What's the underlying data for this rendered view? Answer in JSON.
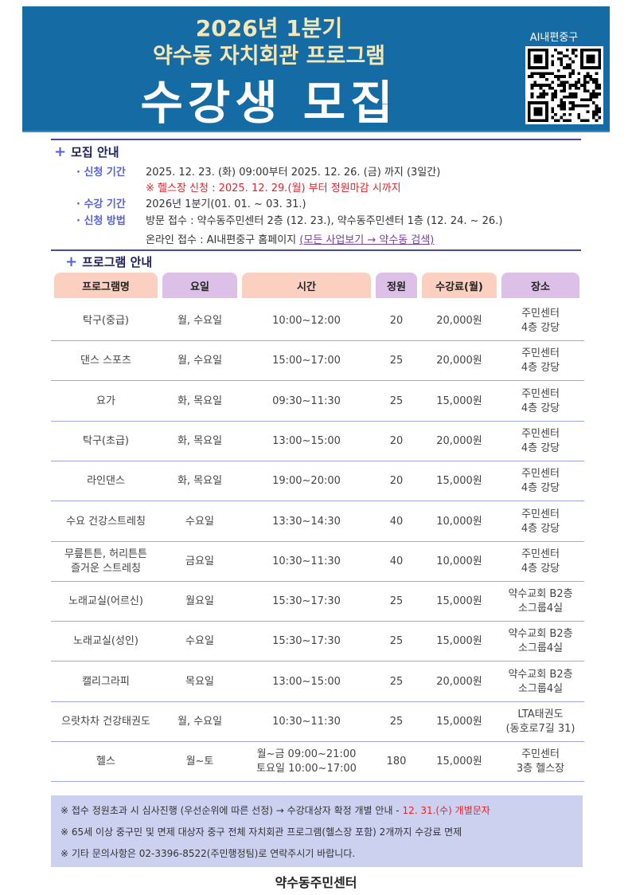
{
  "header": {
    "line1": "2026년 1분기",
    "line2": "약수동 자치회관 프로그램",
    "line3": "수강생 모집",
    "qr_label": "AI내편중구"
  },
  "recruit": {
    "title": "모집 안내",
    "period_label": "· 신청 기간",
    "period": "2025. 12. 23. (화) 09:00부터 2025. 12. 26. (금) 까지 (3일간)",
    "gym_note": "※ 헬스장 신청 : 2025. 12. 29.(월) 부터 정원마감 시까지",
    "course_label": "· 수강 기간",
    "course": "2026년 1분기(01. 01. ~ 03. 31.)",
    "method_label": "· 신청 방법",
    "visit": "방문  접수   : 약수동주민센터 2층 (12. 23.), 약수동주민센터 1층 (12. 24. ~ 26.)",
    "online": "온라인 접수 :  AI내편중구 홈페이지 ",
    "online_link": "(모든 사업보기 → 약수동 검색)"
  },
  "programs": {
    "title": "프로그램 안내",
    "headers": [
      "프로그램명",
      "요일",
      "시간",
      "정원",
      "수강료(월)",
      "장소"
    ],
    "rows": [
      [
        "탁구(중급)",
        "월, 수요일",
        "10:00~12:00",
        "20",
        "20,000원",
        "주민센터\n4층 강당"
      ],
      [
        "댄스 스포츠",
        "월, 수요일",
        "15:00~17:00",
        "25",
        "20,000원",
        "주민센터\n4층 강당"
      ],
      [
        "요가",
        "화, 목요일",
        "09:30~11:30",
        "25",
        "15,000원",
        "주민센터\n4층 강당"
      ],
      [
        "탁구(초급)",
        "화, 목요일",
        "13:00~15:00",
        "20",
        "20,000원",
        "주민센터\n4층 강당"
      ],
      [
        "라인댄스",
        "화, 목요일",
        "19:00~20:00",
        "20",
        "15,000원",
        "주민센터\n4층 강당"
      ],
      [
        "수요 건강스트레칭",
        "수요일",
        "13:30~14:30",
        "40",
        "10,000원",
        "주민센터\n4층 강당"
      ],
      [
        "무릎튼튼, 허리튼튼\n즐거운 스트레칭",
        "금요일",
        "10:30~11:30",
        "40",
        "10,000원",
        "주민센터\n4층 강당"
      ],
      [
        "노래교실(어르신)",
        "월요일",
        "15:30~17:30",
        "25",
        "15,000원",
        "약수교회 B2층\n소그룹4실"
      ],
      [
        "노래교실(성인)",
        "수요일",
        "15:30~17:30",
        "25",
        "15,000원",
        "약수교회 B2층\n소그룹4실"
      ],
      [
        "캘리그라피",
        "목요일",
        "13:00~15:00",
        "25",
        "20,000원",
        "약수교회 B2층\n소그룹4실"
      ],
      [
        "으랏차차 건강태권도",
        "월, 수요일",
        "10:30~11:30",
        "25",
        "15,000원",
        "LTA태권도\n(동호로7길 31)"
      ],
      [
        "헬스",
        "월~토",
        "월~금  09:00~21:00\n토요일 10:00~17:00",
        "180",
        "15,000원",
        "주민센터\n3층 헬스장"
      ]
    ]
  },
  "notes": {
    "n1": "※ 접수 정원초과 시 심사진행 (우선순위에 따른 선정) →  수강대상자 확정 개별 안내 - ",
    "n1_red": "12. 31.(수) 개별문자",
    "n2": "※ 65세 이상 중구민 및 면제 대상자 중구 전체 자치회관 프로그램(헬스장 포함) 2개까지 수강료 면제",
    "n3": "※ 기타 문의사항은 02-3396-8522(주민행정팀)로 연락주시기 바랍니다."
  },
  "footer": "약수동주민센터",
  "colors": {
    "banner": "#156ba3",
    "title_yellow": "#f6e7b4",
    "accent": "#5562d8",
    "red": "#e8222a",
    "note_bg": "#cdd1f0"
  }
}
